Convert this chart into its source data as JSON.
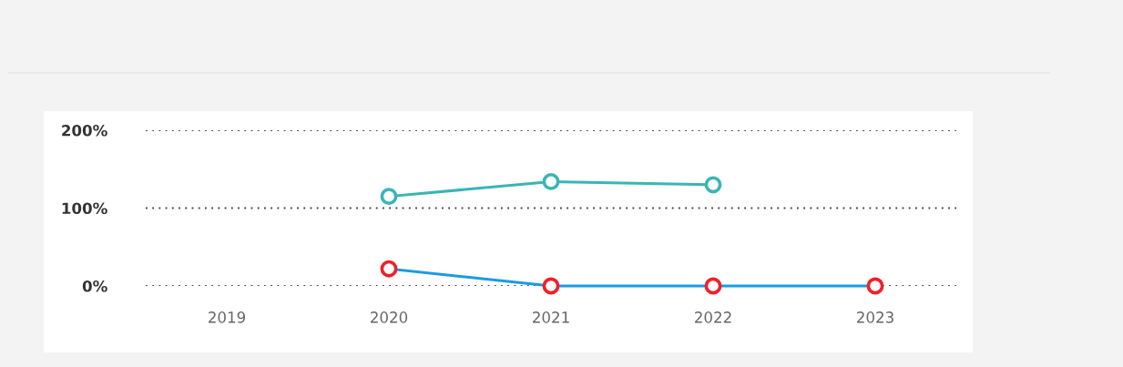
{
  "chart_data": {
    "type": "line",
    "categories": [
      "2019",
      "2020",
      "2021",
      "2022",
      "2023"
    ],
    "series": [
      {
        "color": "#3ab5b5",
        "values": [
          null,
          115,
          134,
          130,
          null
        ]
      },
      {
        "color": "#1b9be0",
        "colors": [
          "#f0202a",
          "#f0202a",
          "#f0202a",
          "#f0202a",
          "#f0202a"
        ],
        "values": [
          null,
          22,
          0,
          0,
          0
        ]
      }
    ],
    "ylim": [
      0,
      200
    ],
    "yticks": [
      {
        "value": 0,
        "label": "0%"
      },
      {
        "value": 100,
        "label": "100%"
      },
      {
        "value": 200,
        "label": "200%"
      }
    ],
    "grid": "y",
    "marker": "circle",
    "line_style": "solid"
  }
}
